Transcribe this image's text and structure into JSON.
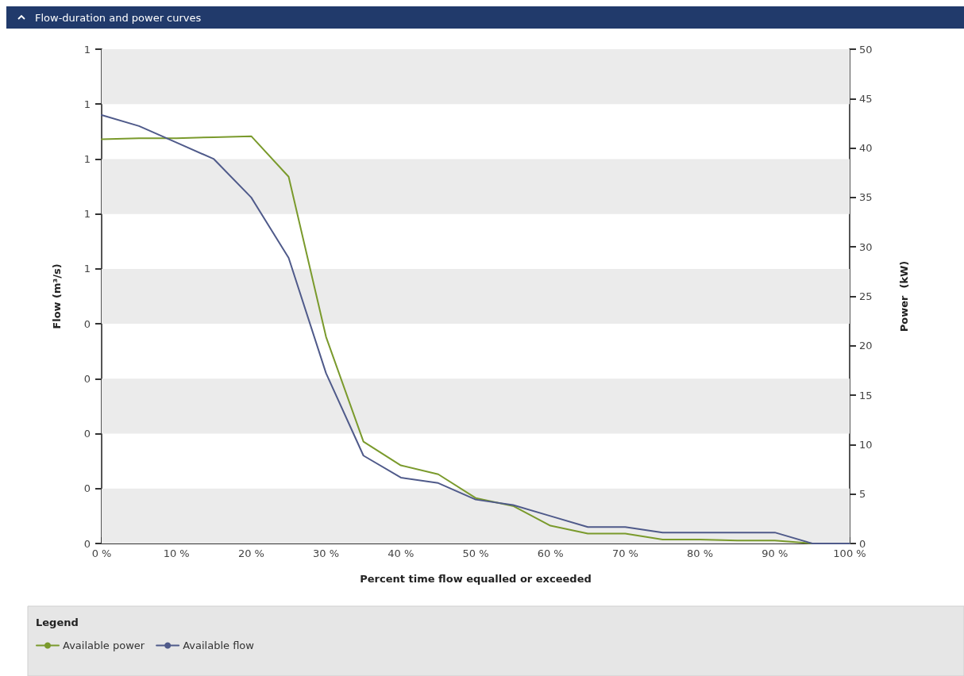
{
  "chart_data": {
    "type": "line",
    "title": "Flow-duration and power curves",
    "xlabel": "Percent time flow equalled or exceeded",
    "ylabel": "Flow (m³/s)",
    "y2label": "Power  (kW)",
    "legend_title": "Legend",
    "x": [
      0,
      5,
      10,
      15,
      20,
      25,
      30,
      35,
      40,
      45,
      50,
      55,
      60,
      65,
      70,
      75,
      80,
      85,
      90,
      95,
      100
    ],
    "series": [
      {
        "name": "Available power",
        "color": "#7a9a2c",
        "axis": "y2",
        "values": [
          40.9,
          41.0,
          41.0,
          41.1,
          41.2,
          37.1,
          20.9,
          10.3,
          7.9,
          7.0,
          4.6,
          3.8,
          1.8,
          1.0,
          1.0,
          0.4,
          0.4,
          0.3,
          0.3,
          0,
          0
        ]
      },
      {
        "name": "Available flow",
        "color": "#4f5a8a",
        "values": [
          0.78,
          0.76,
          0.73,
          0.7,
          0.63,
          0.52,
          0.31,
          0.16,
          0.12,
          0.11,
          0.08,
          0.07,
          0.05,
          0.03,
          0.03,
          0.02,
          0.02,
          0.02,
          0.02,
          0,
          0
        ]
      }
    ],
    "xlim": [
      0,
      100
    ],
    "xticks": [
      {
        "value": 0,
        "label": "0 %"
      },
      {
        "value": 10,
        "label": "10 %"
      },
      {
        "value": 20,
        "label": "20 %"
      },
      {
        "value": 30,
        "label": "30 %"
      },
      {
        "value": 40,
        "label": "40 %"
      },
      {
        "value": 50,
        "label": "50 %"
      },
      {
        "value": 60,
        "label": "60 %"
      },
      {
        "value": 70,
        "label": "70 %"
      },
      {
        "value": 80,
        "label": "80 %"
      },
      {
        "value": 90,
        "label": "90 %"
      },
      {
        "value": 100,
        "label": "100 %"
      }
    ],
    "ylim": [
      0,
      0.9
    ],
    "yticks": [
      {
        "value": 0,
        "label": "0"
      },
      {
        "value": 0.1,
        "label": "0"
      },
      {
        "value": 0.2,
        "label": "0"
      },
      {
        "value": 0.3,
        "label": "0"
      },
      {
        "value": 0.4,
        "label": "0"
      },
      {
        "value": 0.5,
        "label": "1"
      },
      {
        "value": 0.6,
        "label": "1"
      },
      {
        "value": 0.7,
        "label": "1"
      },
      {
        "value": 0.8,
        "label": "1"
      },
      {
        "value": 0.9,
        "label": "1"
      }
    ],
    "y2lim": [
      0,
      50
    ],
    "y2ticks": [
      0,
      5,
      10,
      15,
      20,
      25,
      30,
      35,
      40,
      45,
      50
    ],
    "bands": [
      {
        "axis": "y",
        "from": 0,
        "to": 0.1,
        "color": "#ebebeb"
      },
      {
        "axis": "y",
        "from": 0.2,
        "to": 0.3,
        "color": "#ebebeb"
      },
      {
        "axis": "y",
        "from": 0.4,
        "to": 0.5,
        "color": "#ebebeb"
      },
      {
        "axis": "y",
        "from": 0.6,
        "to": 0.7,
        "color": "#ebebeb"
      },
      {
        "axis": "y",
        "from": 0.8,
        "to": 0.9,
        "color": "#ebebeb"
      }
    ],
    "legend": "bottom left",
    "marker": "none",
    "line_style": "solid"
  }
}
